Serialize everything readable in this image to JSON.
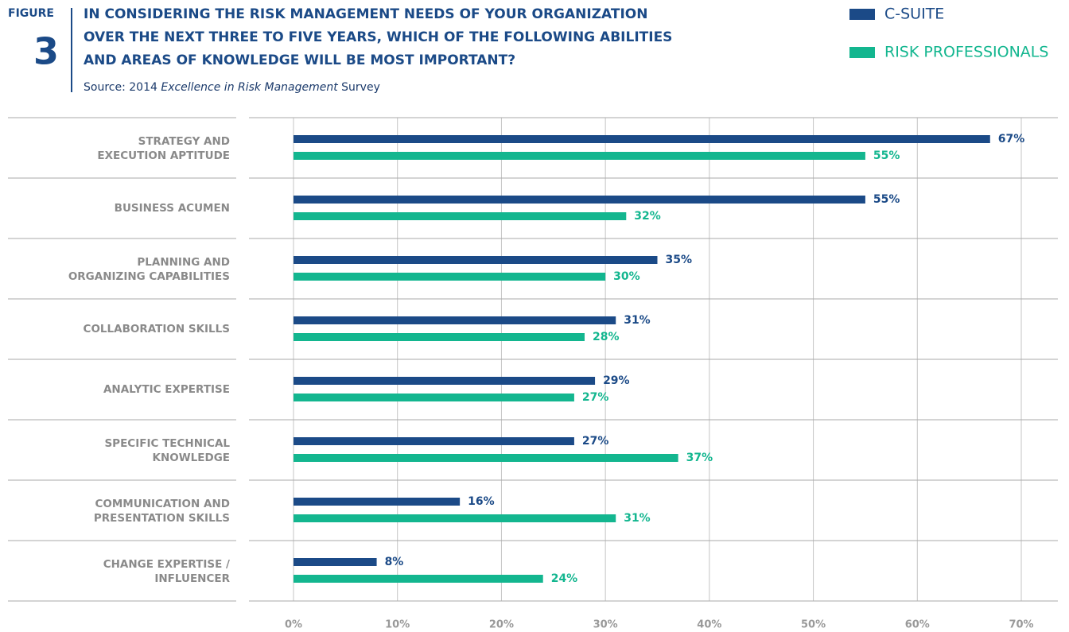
{
  "figure_label": "FIGURE",
  "figure_number": "3",
  "chart_data": {
    "type": "hbar",
    "title": [
      "IN CONSIDERING THE RISK MANAGEMENT NEEDS OF YOUR ORGANIZATION",
      "OVER THE NEXT THREE TO FIVE YEARS, WHICH OF THE FOLLOWING ABILITIES",
      "AND AREAS OF KNOWLEDGE WILL BE MOST IMPORTANT?"
    ],
    "source": [
      "Source: 2014 ",
      "Excellence in Risk Management",
      " Survey"
    ],
    "categories": [
      [
        "STRATEGY AND",
        "EXECUTION APTITUDE"
      ],
      [
        "BUSINESS ACUMEN"
      ],
      [
        "PLANNING AND",
        "ORGANIZING CAPABILITIES"
      ],
      [
        "COLLABORATION SKILLS"
      ],
      [
        "ANALYTIC EXPERTISE"
      ],
      [
        "SPECIFIC TECHNICAL",
        "KNOWLEDGE"
      ],
      [
        "COMMUNICATION AND",
        "PRESENTATION SKILLS"
      ],
      [
        "CHANGE EXPERTISE /",
        "INFLUENCER"
      ]
    ],
    "series": [
      {
        "name": "C-SUITE",
        "color": "#1b4a87",
        "values": [
          67,
          55,
          35,
          31,
          29,
          27,
          16,
          8
        ],
        "value_labels": [
          "67%",
          "55%",
          "35%",
          "31%",
          "29%",
          "27%",
          "16%",
          "8%"
        ]
      },
      {
        "name": "RISK PROFESSIONALS",
        "color": "#13b68f",
        "values": [
          55,
          32,
          30,
          28,
          27,
          37,
          31,
          24
        ],
        "value_labels": [
          "55%",
          "32%",
          "30%",
          "28%",
          "27%",
          "37%",
          "31%",
          "24%"
        ]
      }
    ],
    "xlim": [
      0,
      70
    ],
    "xticks": [
      {
        "value": 0,
        "label": "0%"
      },
      {
        "value": 10,
        "label": "10%"
      },
      {
        "value": 20,
        "label": "20%"
      },
      {
        "value": 30,
        "label": "30%"
      },
      {
        "value": 40,
        "label": "40%"
      },
      {
        "value": 50,
        "label": "50%"
      },
      {
        "value": 60,
        "label": "60%"
      },
      {
        "value": 70,
        "label": "70%"
      }
    ],
    "grid": true,
    "legend": "top-right"
  }
}
